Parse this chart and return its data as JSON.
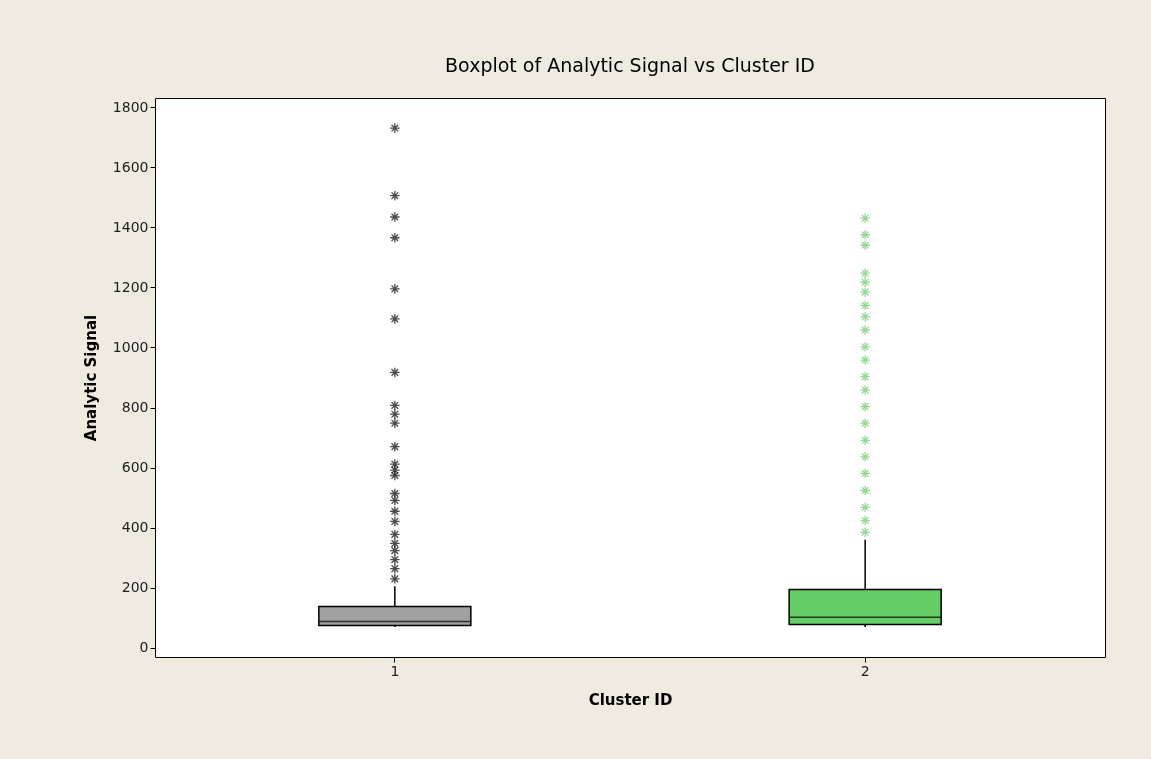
{
  "chart_data": {
    "type": "box",
    "title": "Boxplot of Analytic Signal vs Cluster ID",
    "xlabel": "Cluster ID",
    "ylabel": "Analytic Signal",
    "categories": [
      "1",
      "2"
    ],
    "colors": [
      "#a0a0a0",
      "#66cc66"
    ],
    "boxes": [
      {
        "low": 70,
        "q1": 75,
        "median": 88,
        "q3": 138,
        "high": 205
      },
      {
        "low": 70,
        "q1": 78,
        "median": 102,
        "q3": 195,
        "high": 360
      }
    ],
    "series": [
      {
        "type": "scatter",
        "color": "#000000",
        "x": [
          "1",
          "1",
          "1",
          "1",
          "1",
          "1",
          "1",
          "1",
          "1",
          "1",
          "1",
          "1",
          "1",
          "1",
          "1",
          "1",
          "1",
          "1",
          "1",
          "1",
          "1",
          "1",
          "1",
          "1"
        ],
        "values": [
          1730,
          1505,
          1434,
          1365,
          1195,
          1095,
          917,
          807,
          778,
          748,
          670,
          612,
          592,
          574,
          514,
          491,
          455,
          421,
          378,
          348,
          324,
          294,
          264,
          230
        ]
      },
      {
        "type": "scatter",
        "color": "#66cc66",
        "x": [
          "2",
          "2",
          "2",
          "2",
          "2",
          "2",
          "2",
          "2",
          "2",
          "2",
          "2",
          "2",
          "2",
          "2",
          "2",
          "2",
          "2",
          "2",
          "2",
          "2",
          "2",
          "2"
        ],
        "values": [
          1430,
          1375,
          1340,
          1247,
          1217,
          1184,
          1140,
          1102,
          1058,
          1002,
          958,
          903,
          858,
          803,
          748,
          691,
          636,
          581,
          524,
          468,
          424,
          385
        ]
      }
    ],
    "marker": "cross",
    "ylim": [
      -30,
      1830
    ],
    "yticks": [
      0,
      200,
      400,
      600,
      800,
      1000,
      1200,
      1400,
      1600,
      1800
    ],
    "grid": false
  }
}
